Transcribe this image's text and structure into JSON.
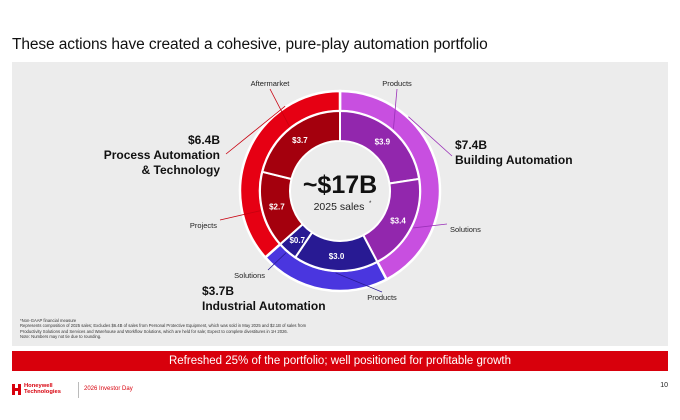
{
  "title": "These actions have created a cohesive, pure-play automation portfolio",
  "center": {
    "value": "~$17B",
    "caption": "2025 sales",
    "marker": "*"
  },
  "segments": {
    "process": {
      "value": "$6.4B",
      "name": "Process Automation & Technology",
      "line1": "Process Automation",
      "line2": "& Technology",
      "color": "#e60013",
      "inner_color": "#a4000d"
    },
    "building": {
      "value": "$7.4B",
      "name": "Building Automation",
      "color": "#c84fe0",
      "inner_color": "#9227ad"
    },
    "industrial": {
      "value": "$3.7B",
      "name": "Industrial Automation",
      "color": "#4a36df",
      "inner_color": "#281a93"
    }
  },
  "chart_data": {
    "type": "pie",
    "subtype": "nested-donut",
    "center_label": "~$17B",
    "center_caption": "2025 sales*",
    "outer": [
      {
        "name": "Process Automation & Technology",
        "value": 6.4,
        "value_label": "$6.4B",
        "color": "#e60013"
      },
      {
        "name": "Building Automation",
        "value": 7.4,
        "value_label": "$7.4B",
        "color": "#c84fe0"
      },
      {
        "name": "Industrial Automation",
        "value": 3.7,
        "value_label": "$3.7B",
        "color": "#4a36df"
      }
    ],
    "inner": [
      {
        "segment": "Process Automation & Technology",
        "name": "Aftermarket",
        "value": 3.7,
        "value_label": "$3.7",
        "color": "#a4000d"
      },
      {
        "segment": "Process Automation & Technology",
        "name": "Projects",
        "value": 2.7,
        "value_label": "$2.7",
        "color": "#a4000d"
      },
      {
        "segment": "Building Automation",
        "name": "Products",
        "value": 3.9,
        "value_label": "$3.9",
        "color": "#9227ad"
      },
      {
        "segment": "Building Automation",
        "name": "Solutions",
        "value": 3.4,
        "value_label": "$3.4",
        "color": "#9227ad"
      },
      {
        "segment": "Industrial Automation",
        "name": "Products",
        "value": 3.0,
        "value_label": "$3.0",
        "color": "#281a93"
      },
      {
        "segment": "Industrial Automation",
        "name": "Solutions",
        "value": 0.7,
        "value_label": "$0.7",
        "color": "#281a93"
      }
    ]
  },
  "footnotes": [
    "*Non-GAAP financial measure",
    "Represents composition of 2025 sales; Excludes $6.4B of sales from Personal Protective Equipment, which was sold in May 2025 and $2.1B of sales from",
    "Productivity Solutions and Services and Warehouse and Workflow Solutions, which are held for sale; Expect to complete divestitures in 1H 2026.",
    "Note: Numbers may not tie due to rounding."
  ],
  "banner": "Refreshed 25% of the portfolio; well positioned for profitable growth",
  "footer": {
    "logo_line1": "Honeywell",
    "logo_line2": "Technologies",
    "event": "2026 Investor Day",
    "page": "10",
    "brand_color": "#d8000c"
  }
}
